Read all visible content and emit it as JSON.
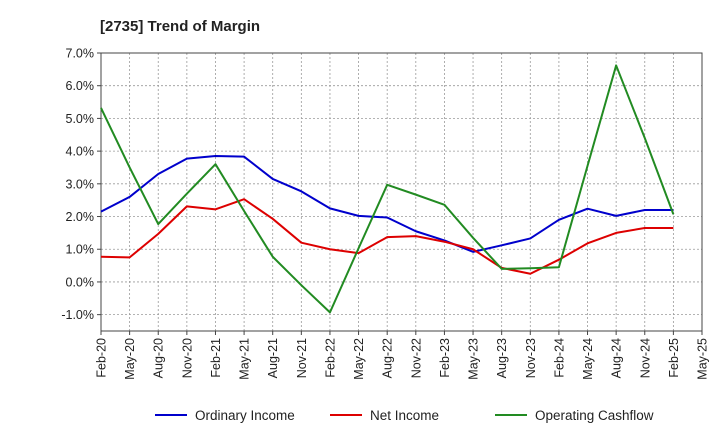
{
  "chart_data": {
    "type": "line",
    "title": "[2735]  Trend of Margin",
    "xlabel": "",
    "ylabel": "",
    "ylim": [
      -1.5,
      7.0
    ],
    "y_ticks": [
      -1.0,
      0.0,
      1.0,
      2.0,
      3.0,
      4.0,
      5.0,
      6.0,
      7.0
    ],
    "y_tick_labels": [
      "-1.0%",
      "0.0%",
      "1.0%",
      "2.0%",
      "3.0%",
      "4.0%",
      "5.0%",
      "6.0%",
      "7.0%"
    ],
    "x_tick_labels": [
      "Feb-20",
      "May-20",
      "Aug-20",
      "Nov-20",
      "Feb-21",
      "May-21",
      "Aug-21",
      "Nov-21",
      "Feb-22",
      "May-22",
      "Aug-22",
      "Nov-22",
      "Feb-23",
      "May-23",
      "Aug-23",
      "Nov-23",
      "Feb-24",
      "May-24",
      "Aug-24",
      "Nov-24",
      "Feb-25",
      "May-25"
    ],
    "categories": [
      "Feb-20",
      "May-20",
      "Aug-20",
      "Nov-20",
      "Feb-21",
      "May-21",
      "Aug-21",
      "Nov-21",
      "Feb-22",
      "May-22",
      "Aug-22",
      "Nov-22",
      "Feb-23",
      "May-23",
      "Aug-23",
      "Nov-23",
      "Feb-24",
      "May-24",
      "Aug-24",
      "Nov-24",
      "Feb-25"
    ],
    "grid": true,
    "legend_position": "bottom",
    "series": [
      {
        "name": "Ordinary Income",
        "color": "#0000cc",
        "values": [
          2.15,
          2.6,
          3.3,
          3.77,
          3.85,
          3.83,
          3.15,
          2.77,
          2.25,
          2.02,
          1.97,
          1.55,
          1.27,
          0.92,
          1.12,
          1.33,
          1.9,
          2.24,
          2.02,
          2.2,
          2.2
        ]
      },
      {
        "name": "Net Income",
        "color": "#dd0000",
        "values": [
          0.77,
          0.75,
          1.47,
          2.31,
          2.22,
          2.53,
          1.93,
          1.2,
          1.0,
          0.88,
          1.37,
          1.4,
          1.23,
          1.0,
          0.43,
          0.25,
          0.68,
          1.18,
          1.5,
          1.65,
          1.65
        ]
      },
      {
        "name": "Operating Cashflow",
        "color": "#228b22",
        "values": [
          5.32,
          3.5,
          1.77,
          2.7,
          3.6,
          2.17,
          0.77,
          -0.1,
          -0.93,
          1.03,
          2.97,
          2.67,
          2.36,
          1.35,
          0.4,
          0.42,
          0.45,
          3.55,
          6.62,
          4.4,
          2.07
        ]
      }
    ]
  }
}
